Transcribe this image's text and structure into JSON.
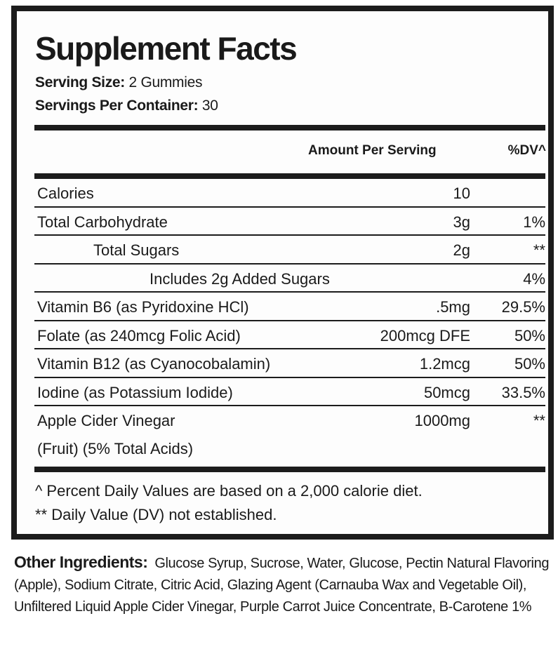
{
  "panel": {
    "title": "Supplement Facts",
    "serving_size_label": "Serving Size:",
    "serving_size_value": "2 Gummies",
    "servings_per_container_label": "Servings Per Container:",
    "servings_per_container_value": "30",
    "col_amount": "Amount Per Serving",
    "col_dv": "%DV^",
    "rows": [
      {
        "name": "Calories",
        "amount": "10",
        "dv": ""
      },
      {
        "name": "Total Carbohydrate",
        "amount": "3g",
        "dv": "1%"
      },
      {
        "name": "Total Sugars",
        "amount": "2g",
        "dv": "**"
      },
      {
        "name": "Includes 2g Added Sugars",
        "amount": "",
        "dv": "4%"
      },
      {
        "name": "Vitamin B6 (as Pyridoxine HCl)",
        "amount": ".5mg",
        "dv": "29.5%"
      },
      {
        "name": "Folate (as 240mcg Folic Acid)",
        "amount": "200mcg DFE",
        "dv": "50%"
      },
      {
        "name": "Vitamin B12 (as Cyanocobalamin)",
        "amount": "1.2mcg",
        "dv": "50%"
      },
      {
        "name": "Iodine (as Potassium Iodide)",
        "amount": "50mcg",
        "dv": "33.5%"
      },
      {
        "name": "Apple Cider Vinegar",
        "name_line2": "(Fruit) (5% Total Acids)",
        "amount": "1000mg",
        "dv": "**"
      }
    ],
    "footnote_1": "^ Percent Daily Values are based on a 2,000 calorie diet.",
    "footnote_2": "** Daily Value (DV) not established."
  },
  "other_ingredients": {
    "label": "Other Ingredients:",
    "text": "Glucose Syrup, Sucrose, Water, Glucose, Pectin Natural Flavoring (Apple), Sodium Citrate, Citric Acid, Glazing Agent (Carnauba Wax and Vegetable Oil), Unfiltered Liquid Apple Cider Vinegar, Purple Carrot Juice Concentrate, B-Carotene 1%"
  }
}
